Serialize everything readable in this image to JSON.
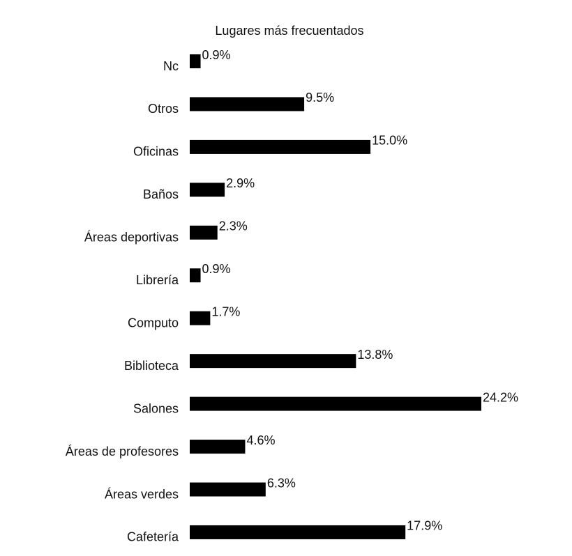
{
  "chart_data": {
    "type": "barh",
    "title": "Lugares más frecuentados",
    "categories": [
      "Nc",
      "Otros",
      "Oficinas",
      "Baños",
      "Áreas deportivas",
      "Librería",
      "Computo",
      "Biblioteca",
      "Salones",
      "Áreas de profesores",
      "Áreas verdes",
      "Cafetería"
    ],
    "values": [
      0.9,
      9.5,
      15.0,
      2.9,
      2.3,
      0.9,
      1.7,
      13.8,
      24.2,
      4.6,
      6.3,
      17.9
    ],
    "value_labels": [
      "0.9%",
      "9.5%",
      "15.0%",
      "2.9%",
      "2.3%",
      "0.9%",
      "1.7%",
      "13.8%",
      "24.2%",
      "4.6%",
      "6.3%",
      "17.9%"
    ],
    "color": "#000000"
  }
}
